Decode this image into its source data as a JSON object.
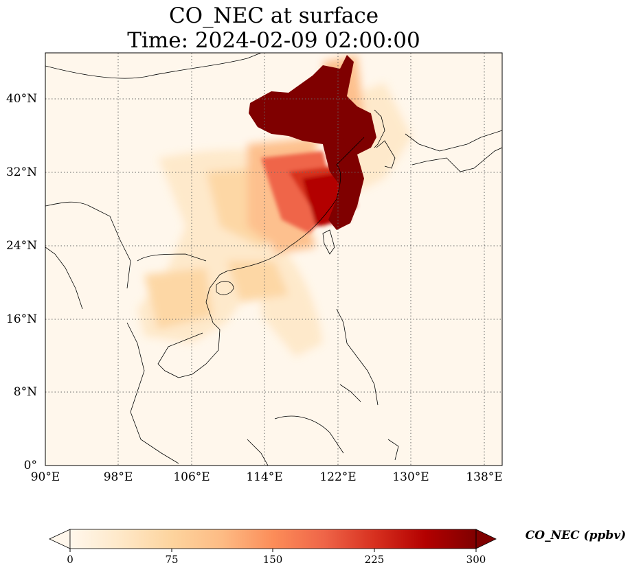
{
  "map": {
    "title_line1": "CO_NEC at surface",
    "title_line2": "Time: 2024-02-09 02:00:00",
    "projection": "PlateCarree",
    "extent": {
      "lon_min": 90,
      "lon_max": 140,
      "lat_min": 0,
      "lat_max": 45
    },
    "lat_ticks": [
      "0°",
      "8°N",
      "16°N",
      "24°N",
      "32°N",
      "40°N"
    ],
    "lon_ticks": [
      "90°E",
      "98°E",
      "106°E",
      "114°E",
      "122°E",
      "130°E",
      "138°E"
    ],
    "gridlines": true,
    "colormap": "OrRd",
    "colorbar": {
      "label": "CO_NEC (ppbv)",
      "min": 0,
      "max": 300,
      "ticks": [
        "0",
        "75",
        "150",
        "225",
        "300"
      ],
      "extend": "both",
      "colors": [
        "#fff7ec",
        "#fee8c8",
        "#fdd49e",
        "#fdbb84",
        "#fc8d59",
        "#ef6548",
        "#d7301f",
        "#b30000",
        "#7f0000"
      ]
    },
    "background_color": "#fff7ec"
  }
}
